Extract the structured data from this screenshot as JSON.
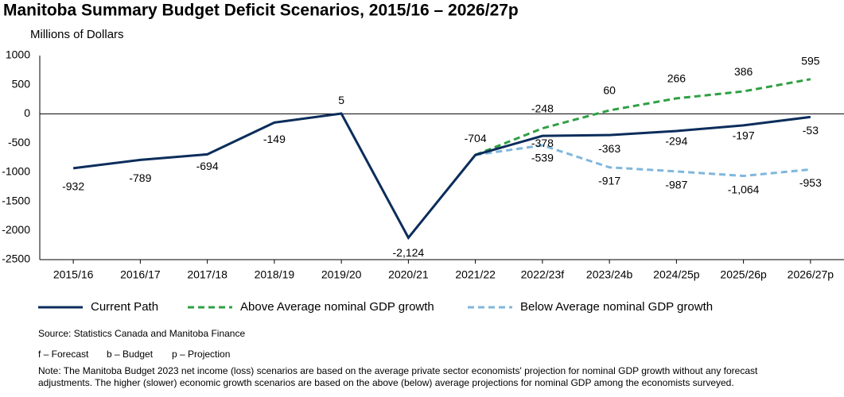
{
  "chart_data": {
    "type": "line",
    "title": "Manitoba Summary Budget Deficit Scenarios, 2015/16 – 2026/27p",
    "y_label": "Millions of Dollars",
    "categories": [
      "2015/16",
      "2016/17",
      "2017/18",
      "2018/19",
      "2019/20",
      "2020/21",
      "2021/22",
      "2022/23f",
      "2023/24b",
      "2024/25p",
      "2025/26p",
      "2026/27p"
    ],
    "series": [
      {
        "name": "Current Path",
        "color": "#0b2d5b",
        "dash": false,
        "values": [
          -932,
          -789,
          -694,
          -149,
          5,
          -2124,
          -704,
          -378,
          -363,
          -294,
          -197,
          -53
        ],
        "value_labels": [
          "-932",
          "-789",
          "-694",
          "-149",
          "5",
          "-2,124",
          "-704",
          "-378",
          "-363",
          "-294",
          "-197",
          "-53"
        ]
      },
      {
        "name": "Above Average nominal GDP growth",
        "color": "#2ea043",
        "dash": true,
        "values": [
          null,
          null,
          null,
          null,
          null,
          null,
          -704,
          -248,
          60,
          266,
          386,
          595
        ],
        "value_labels": [
          null,
          null,
          null,
          null,
          null,
          null,
          null,
          "-248",
          "60",
          "266",
          "386",
          "595"
        ]
      },
      {
        "name": "Below Average nominal GDP growth",
        "color": "#7fb7dd",
        "dash": true,
        "values": [
          null,
          null,
          null,
          null,
          null,
          null,
          -704,
          -539,
          -917,
          -987,
          -1064,
          -953
        ],
        "value_labels": [
          null,
          null,
          null,
          null,
          null,
          null,
          null,
          "-539",
          "-917",
          "-987",
          "-1,064",
          "-953"
        ]
      }
    ],
    "ylim": [
      -2500,
      1000
    ],
    "yticks": [
      -2500,
      -2000,
      -1500,
      -1000,
      -500,
      0,
      500,
      1000
    ],
    "grid": false,
    "source": "Source: Statistics Canada and Manitoba Finance",
    "footnotes": [
      "f – Forecast",
      "b – Budget",
      "p – Projection"
    ],
    "note": [
      "Note: The Manitoba Budget 2023 net income (loss) scenarios are based on the average private sector economists' projection for nominal GDP growth without any forecast",
      "adjustments. The higher (slower) economic growth scenarios are based on the above (below) average projections for nominal GDP among the economists surveyed."
    ]
  }
}
